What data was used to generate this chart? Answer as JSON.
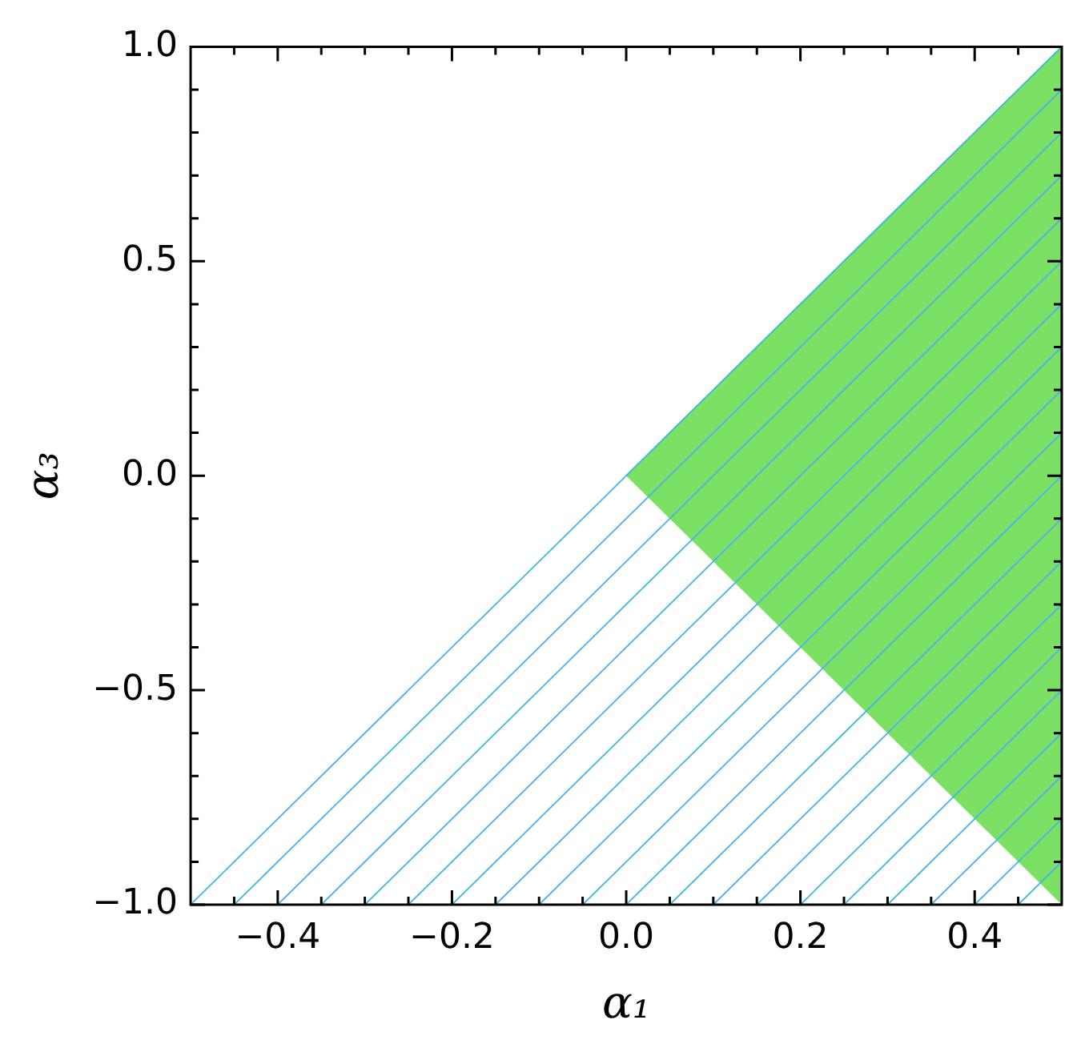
{
  "chart_data": {
    "type": "area",
    "xlabel": "α₁",
    "ylabel": "α₃",
    "series": [
      {
        "color": "#7be064",
        "x": [
          0,
          0.5,
          0.5
        ],
        "values": [
          0,
          1,
          -1
        ]
      },
      {
        "type": "line",
        "color": "#45b4e8",
        "x": [
          -0.5,
          0.5
        ],
        "values": [
          -1,
          1
        ]
      },
      {
        "type": "line",
        "color": "#45b4e8",
        "x": [
          -0.45,
          0.5
        ],
        "values": [
          -1,
          0.9
        ]
      },
      {
        "type": "line",
        "color": "#45b4e8",
        "x": [
          -0.4,
          0.5
        ],
        "values": [
          -1,
          0.8
        ]
      },
      {
        "type": "line",
        "color": "#45b4e8",
        "x": [
          -0.35,
          0.5
        ],
        "values": [
          -1,
          0.7
        ]
      },
      {
        "type": "line",
        "color": "#45b4e8",
        "x": [
          -0.3,
          0.5
        ],
        "values": [
          -1,
          0.6
        ]
      },
      {
        "type": "line",
        "color": "#45b4e8",
        "x": [
          -0.25,
          0.5
        ],
        "values": [
          -1,
          0.5
        ]
      },
      {
        "type": "line",
        "color": "#45b4e8",
        "x": [
          -0.2,
          0.5
        ],
        "values": [
          -1,
          0.4
        ]
      },
      {
        "type": "line",
        "color": "#45b4e8",
        "x": [
          -0.15,
          0.5
        ],
        "values": [
          -1,
          0.3
        ]
      },
      {
        "type": "line",
        "color": "#45b4e8",
        "x": [
          -0.1,
          0.5
        ],
        "values": [
          -1,
          0.2
        ]
      },
      {
        "type": "line",
        "color": "#45b4e8",
        "x": [
          -0.05,
          0.5
        ],
        "values": [
          -1,
          0.1
        ]
      },
      {
        "type": "line",
        "color": "#45b4e8",
        "x": [
          0,
          0.5
        ],
        "values": [
          -1,
          0
        ]
      },
      {
        "type": "line",
        "color": "#45b4e8",
        "x": [
          0.05,
          0.5
        ],
        "values": [
          -1,
          -0.1
        ]
      },
      {
        "type": "line",
        "color": "#45b4e8",
        "x": [
          0.1,
          0.5
        ],
        "values": [
          -1,
          -0.2
        ]
      },
      {
        "type": "line",
        "color": "#45b4e8",
        "x": [
          0.15,
          0.5
        ],
        "values": [
          -1,
          -0.3
        ]
      },
      {
        "type": "line",
        "color": "#45b4e8",
        "x": [
          0.2,
          0.5
        ],
        "values": [
          -1,
          -0.4
        ]
      },
      {
        "type": "line",
        "color": "#45b4e8",
        "x": [
          0.25,
          0.5
        ],
        "values": [
          -1,
          -0.5
        ]
      },
      {
        "type": "line",
        "color": "#45b4e8",
        "x": [
          0.3,
          0.5
        ],
        "values": [
          -1,
          -0.6
        ]
      },
      {
        "type": "line",
        "color": "#45b4e8",
        "x": [
          0.35,
          0.5
        ],
        "values": [
          -1,
          -0.7
        ]
      },
      {
        "type": "line",
        "color": "#45b4e8",
        "x": [
          0.4,
          0.5
        ],
        "values": [
          -1,
          -0.8
        ]
      },
      {
        "type": "line",
        "color": "#45b4e8",
        "x": [
          0.45,
          0.5
        ],
        "values": [
          -1,
          -0.9
        ]
      }
    ],
    "xlim": [
      -0.5,
      0.5
    ],
    "xticks": [
      {
        "value": -0.45,
        "label": null
      },
      {
        "value": -0.4,
        "label": "−0.4"
      },
      {
        "value": -0.35,
        "label": null
      },
      {
        "value": -0.3,
        "label": null
      },
      {
        "value": -0.25,
        "label": null
      },
      {
        "value": -0.2,
        "label": "−0.2"
      },
      {
        "value": -0.15,
        "label": null
      },
      {
        "value": -0.1,
        "label": null
      },
      {
        "value": -0.05,
        "label": null
      },
      {
        "value": 0,
        "label": "0.0"
      },
      {
        "value": 0.05,
        "label": null
      },
      {
        "value": 0.1,
        "label": null
      },
      {
        "value": 0.15,
        "label": null
      },
      {
        "value": 0.2,
        "label": "0.2"
      },
      {
        "value": 0.25,
        "label": null
      },
      {
        "value": 0.3,
        "label": null
      },
      {
        "value": 0.35,
        "label": null
      },
      {
        "value": 0.4,
        "label": "0.4"
      },
      {
        "value": 0.45,
        "label": null
      }
    ],
    "ylim": [
      -1,
      1
    ],
    "yticks": [
      {
        "value": -1,
        "label": "−1.0"
      },
      {
        "value": -0.9,
        "label": null
      },
      {
        "value": -0.8,
        "label": null
      },
      {
        "value": -0.7,
        "label": null
      },
      {
        "value": -0.6,
        "label": null
      },
      {
        "value": -0.5,
        "label": "−0.5"
      },
      {
        "value": -0.4,
        "label": null
      },
      {
        "value": -0.3,
        "label": null
      },
      {
        "value": -0.2,
        "label": null
      },
      {
        "value": -0.1,
        "label": null
      },
      {
        "value": 0,
        "label": "0.0"
      },
      {
        "value": 0.1,
        "label": null
      },
      {
        "value": 0.2,
        "label": null
      },
      {
        "value": 0.3,
        "label": null
      },
      {
        "value": 0.4,
        "label": null
      },
      {
        "value": 0.5,
        "label": "0.5"
      },
      {
        "value": 0.6,
        "label": null
      },
      {
        "value": 0.7,
        "label": null
      },
      {
        "value": 0.8,
        "label": null
      },
      {
        "value": 0.9,
        "label": null
      },
      {
        "value": 1,
        "label": "1.0"
      }
    ],
    "grid": false,
    "legend": false
  }
}
